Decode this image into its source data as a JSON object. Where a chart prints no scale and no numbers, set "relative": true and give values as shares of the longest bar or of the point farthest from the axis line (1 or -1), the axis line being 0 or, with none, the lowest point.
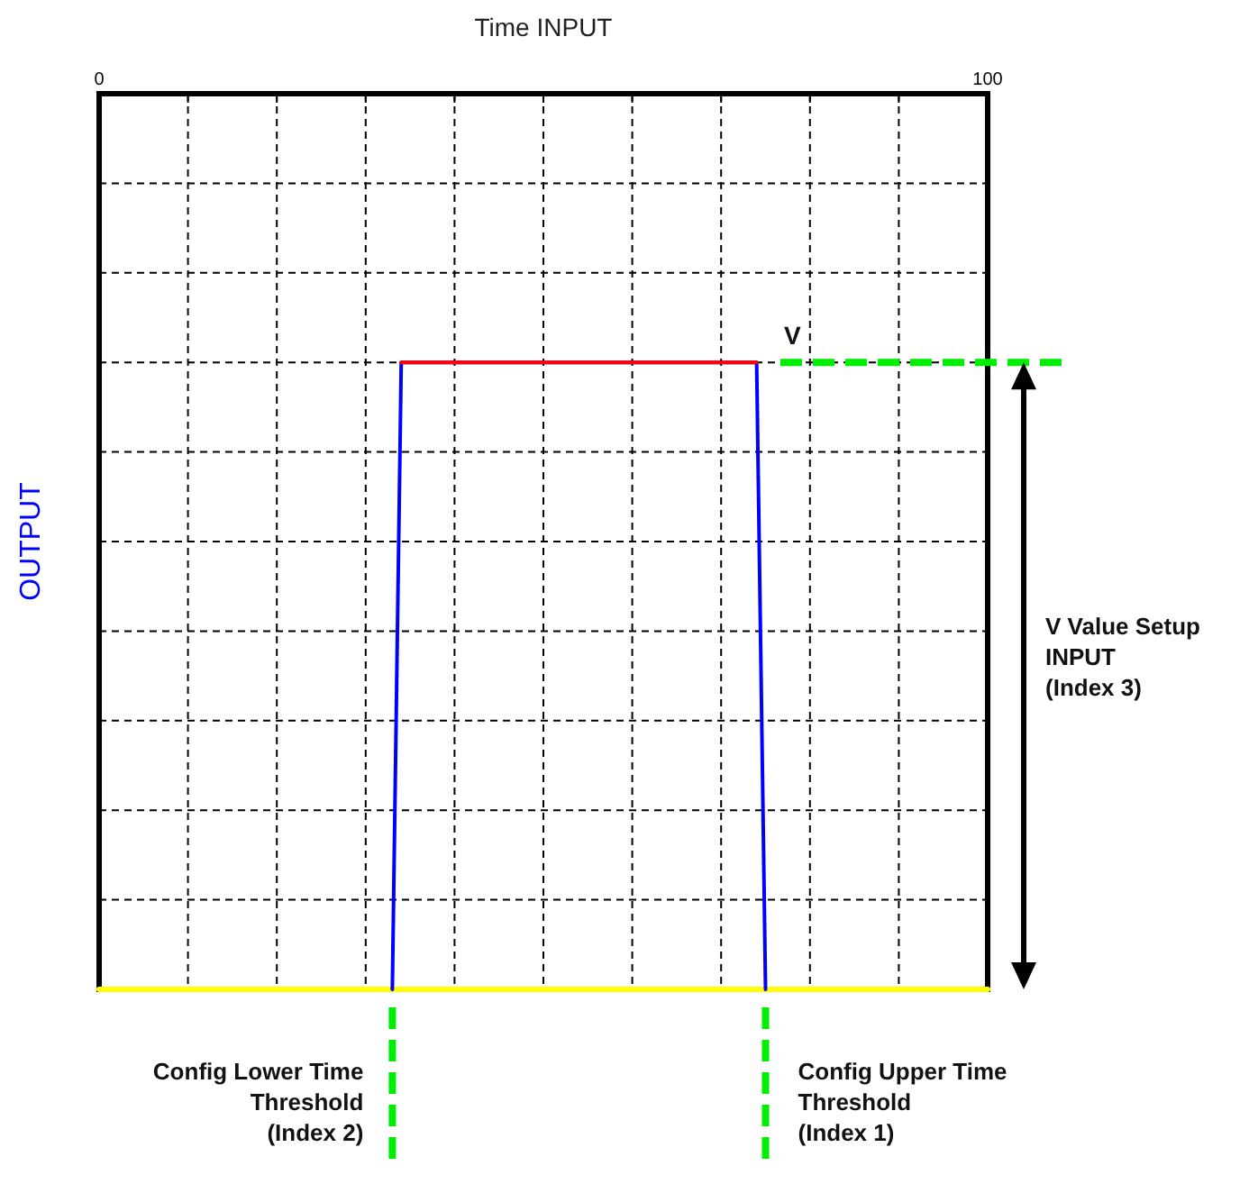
{
  "chart_data": {
    "type": "line",
    "xlabel": "Time INPUT",
    "ylabel": "OUTPUT",
    "relative": true,
    "grid": true,
    "xlim": [
      0,
      100
    ],
    "xticks": [
      0,
      {
        "value": 10,
        "label": null
      },
      {
        "value": 20,
        "label": null
      },
      {
        "value": 30,
        "label": null
      },
      {
        "value": 40,
        "label": null
      },
      {
        "value": 50,
        "label": null
      },
      {
        "value": 60,
        "label": null
      },
      {
        "value": 70,
        "label": null
      },
      {
        "value": 80,
        "label": null
      },
      {
        "value": 90,
        "label": null
      },
      100
    ],
    "series": [
      {
        "color": "#ffff00",
        "x": [
          0,
          100
        ],
        "values": [
          0,
          0
        ]
      },
      {
        "color": "#0000ff",
        "x": [
          33,
          34,
          74,
          75
        ],
        "values": [
          0,
          1,
          1,
          0
        ]
      },
      {
        "color": "#ff0000",
        "x": [
          34,
          74
        ],
        "values": [
          1,
          1
        ]
      }
    ],
    "ref_lines": [
      {
        "axis": "x",
        "value": 33,
        "label": "Config Lower Time\nThreshold\n(Index 2)",
        "color": "#00ee00",
        "line_style": "dashed"
      },
      {
        "axis": "x",
        "value": 75,
        "label": "Config Upper Time\nThreshold\n(Index 1)",
        "color": "#00ee00",
        "line_style": "dashed"
      },
      {
        "axis": "y",
        "value": 1,
        "label": "V",
        "color": "#00ee00",
        "line_style": "dashed"
      }
    ],
    "annotations": [
      "V Value Setup\nINPUT\n(Index 3)"
    ]
  }
}
